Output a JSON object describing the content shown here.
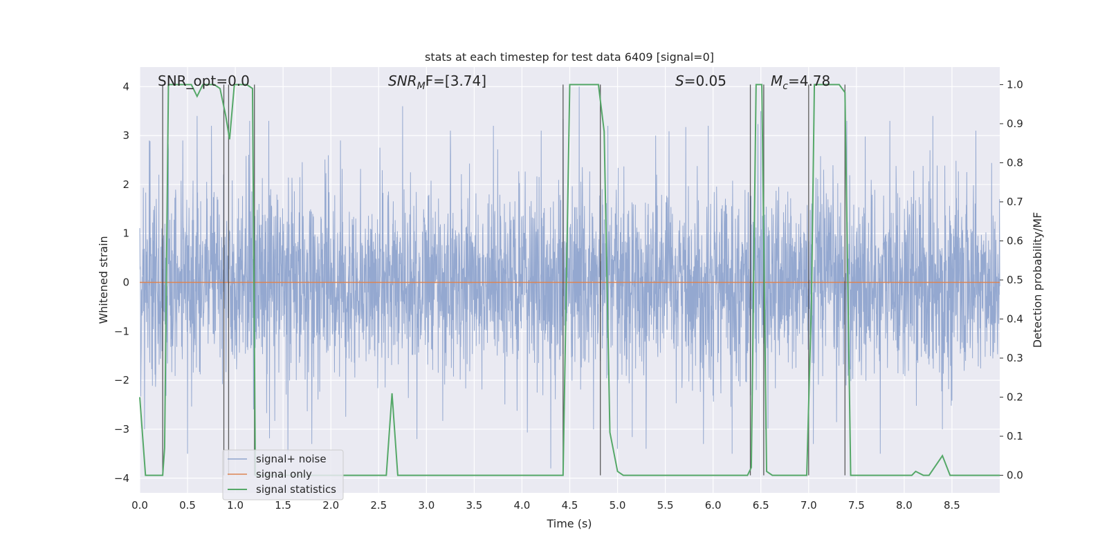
{
  "chart_data": {
    "type": "line",
    "title": "stats at each timestep for test data 6409 [signal=0]",
    "xlabel": "Time (s)",
    "ylabel": "Whitened strain",
    "y2label": "Detection probability/MF",
    "xlim": [
      0.0,
      9.0
    ],
    "ylim": [
      -4.3,
      4.4
    ],
    "y2lim": [
      -0.045,
      1.045
    ],
    "xticks": [
      "0.0",
      "0.5",
      "1.0",
      "1.5",
      "2.0",
      "2.5",
      "3.0",
      "3.5",
      "4.0",
      "4.5",
      "5.0",
      "5.5",
      "6.0",
      "6.5",
      "7.0",
      "7.5",
      "8.0",
      "8.5"
    ],
    "yticks": [
      "4",
      "3",
      "2",
      "1",
      "0",
      "−1",
      "−2",
      "−3",
      "−4"
    ],
    "y2ticks": [
      "1.0",
      "0.9",
      "0.8",
      "0.7",
      "0.6",
      "0.5",
      "0.4",
      "0.3",
      "0.2",
      "0.1",
      "0.0"
    ],
    "grid": true,
    "legend_position": "lower-left",
    "annotations": {
      "snr_opt": "SNR_opt=0.0",
      "snr_mf_base": "SNR",
      "snr_mf_sub": "M",
      "snr_mf_tail": "F=[3.74]",
      "s_base": "S",
      "s_tail": "=0.05",
      "mc_base": "M",
      "mc_sub": "c",
      "mc_tail": "=4.78"
    },
    "series": [
      {
        "name": "signal+ noise",
        "color": "#8fa4cd",
        "axis": "left",
        "noise_envelope_peaks": [
          {
            "x": 0.05,
            "y": 2.6
          },
          {
            "x": 0.1,
            "y": 2.9
          },
          {
            "x": 0.2,
            "y": 2.2
          },
          {
            "x": 0.3,
            "y": 2.7
          },
          {
            "x": 0.45,
            "y": 2.9
          },
          {
            "x": 0.6,
            "y": 3.4
          },
          {
            "x": 0.75,
            "y": 3.2
          },
          {
            "x": 1.15,
            "y": 3.3
          },
          {
            "x": 1.35,
            "y": 3.3
          },
          {
            "x": 1.8,
            "y": 3.0
          },
          {
            "x": 2.1,
            "y": 2.9
          },
          {
            "x": 2.75,
            "y": 3.6
          },
          {
            "x": 3.25,
            "y": 3.1
          },
          {
            "x": 3.7,
            "y": 3.2
          },
          {
            "x": 4.2,
            "y": 3.1
          },
          {
            "x": 4.6,
            "y": 4.0
          },
          {
            "x": 4.9,
            "y": 3.2
          },
          {
            "x": 5.4,
            "y": 3.0
          },
          {
            "x": 5.95,
            "y": 3.2
          },
          {
            "x": 6.5,
            "y": 3.5
          },
          {
            "x": 7.05,
            "y": 3.8
          },
          {
            "x": 7.4,
            "y": 3.3
          },
          {
            "x": 7.85,
            "y": 3.3
          },
          {
            "x": 8.3,
            "y": 3.4
          },
          {
            "x": 8.75,
            "y": 3.1
          }
        ],
        "noise_envelope_troughs": [
          {
            "x": 0.05,
            "y": -3.0
          },
          {
            "x": 0.5,
            "y": -3.5
          },
          {
            "x": 1.55,
            "y": -3.5
          },
          {
            "x": 1.8,
            "y": -3.3
          },
          {
            "x": 2.9,
            "y": -3.2
          },
          {
            "x": 4.3,
            "y": -3.8
          },
          {
            "x": 4.75,
            "y": -3.0
          },
          {
            "x": 5.0,
            "y": -3.4
          },
          {
            "x": 5.3,
            "y": -3.4
          },
          {
            "x": 5.9,
            "y": -3.3
          },
          {
            "x": 6.2,
            "y": -3.5
          },
          {
            "x": 6.55,
            "y": -3.0
          },
          {
            "x": 7.05,
            "y": -3.3
          },
          {
            "x": 7.75,
            "y": -3.5
          },
          {
            "x": 8.4,
            "y": -3.0
          }
        ]
      },
      {
        "name": "signal only",
        "color": "#dd8452",
        "axis": "left",
        "x": [
          0.0,
          9.0
        ],
        "y": [
          0.0,
          0.0
        ]
      },
      {
        "name": "signal statistics",
        "color": "#55a868",
        "axis": "right",
        "x": [
          0.0,
          0.06,
          0.12,
          0.18,
          0.24,
          0.26,
          0.3,
          0.36,
          0.42,
          0.48,
          0.54,
          0.6,
          0.66,
          0.72,
          0.78,
          0.84,
          0.9,
          0.94,
          0.99,
          1.05,
          1.12,
          1.18,
          1.21,
          1.26,
          2.5,
          2.58,
          2.64,
          2.7,
          4.43,
          4.5,
          4.57,
          4.8,
          4.86,
          4.92,
          5.0,
          5.06,
          5.12,
          6.36,
          6.4,
          6.45,
          6.51,
          6.56,
          6.62,
          6.7,
          6.98,
          7.03,
          7.06,
          7.1,
          7.15,
          7.32,
          7.38,
          7.44,
          8.0,
          8.08,
          8.12,
          8.2,
          8.26,
          8.4,
          8.48,
          9.0
        ],
        "y": [
          0.2,
          0.0,
          0.0,
          0.0,
          0.0,
          0.07,
          1.0,
          1.0,
          1.0,
          1.0,
          1.0,
          0.97,
          1.0,
          1.0,
          1.0,
          0.99,
          0.92,
          0.86,
          1.0,
          1.0,
          1.0,
          0.99,
          0.0,
          0.0,
          0.0,
          0.0,
          0.21,
          0.0,
          0.0,
          1.0,
          1.0,
          1.0,
          0.88,
          0.11,
          0.01,
          0.0,
          0.0,
          0.0,
          0.02,
          1.0,
          1.0,
          0.01,
          0.0,
          0.0,
          0.0,
          0.45,
          1.0,
          1.0,
          1.0,
          1.0,
          0.98,
          0.0,
          0.0,
          0.0,
          0.01,
          0.0,
          0.0,
          0.05,
          0.0,
          0.0
        ]
      }
    ],
    "detection_markers": [
      0.24,
      0.88,
      0.93,
      1.2,
      4.43,
      4.82,
      6.39,
      6.53,
      7.0,
      7.38
    ]
  }
}
